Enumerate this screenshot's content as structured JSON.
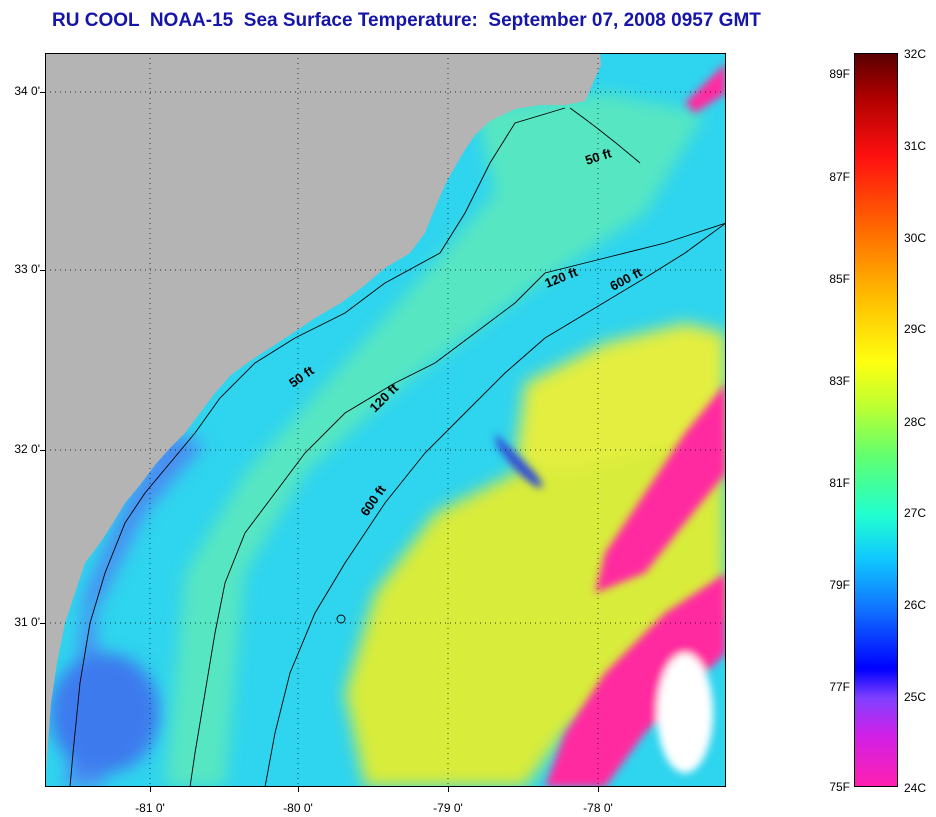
{
  "title": "RU COOL  NOAA-15  Sea Surface Temperature:  September 07, 2008 0957 GMT",
  "map": {
    "lat_labels": [
      "34 0'",
      "33 0'",
      "32 0'",
      "31 0'"
    ],
    "lon_labels": [
      "-81 0'",
      "-80 0'",
      "-79 0'",
      "-78 0'"
    ],
    "contour_labels": [
      "50 ft",
      "120 ft",
      "600 ft",
      "50 ft",
      "120 ft",
      "600 ft"
    ]
  },
  "colorbar": {
    "fahrenheit_labels": [
      "89F",
      "87F",
      "85F",
      "83F",
      "81F",
      "79F",
      "77F",
      "75F"
    ],
    "celsius_labels": [
      "32C",
      "31C",
      "30C",
      "29C",
      "28C",
      "27C",
      "26C",
      "25C",
      "24C"
    ]
  },
  "colors": {
    "title": "#1515a8",
    "land": "#b4b4b4",
    "grid": "#000000"
  }
}
